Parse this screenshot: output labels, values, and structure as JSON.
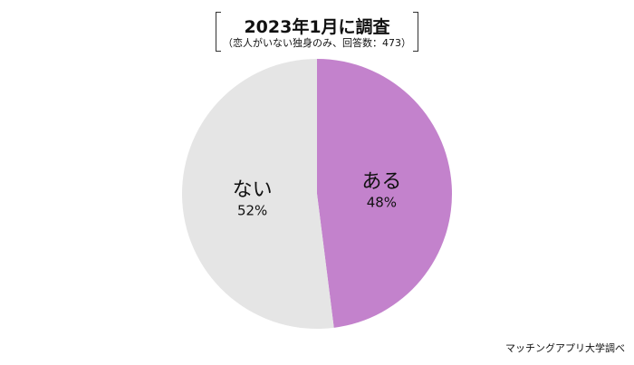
{
  "chart_data": {
    "type": "pie",
    "title": "2023年1月に調査",
    "subtitle": "（恋人がいない独身のみ、回答数：473）",
    "slices": [
      {
        "label": "ある",
        "value": 48,
        "display": "48%",
        "color": "#c382cc"
      },
      {
        "label": "ない",
        "value": 52,
        "display": "52%",
        "color": "#e5e5e5"
      }
    ],
    "start_angle": "top, clockwise",
    "legend": "none"
  },
  "source": "マッチングアプリ大学調べ"
}
